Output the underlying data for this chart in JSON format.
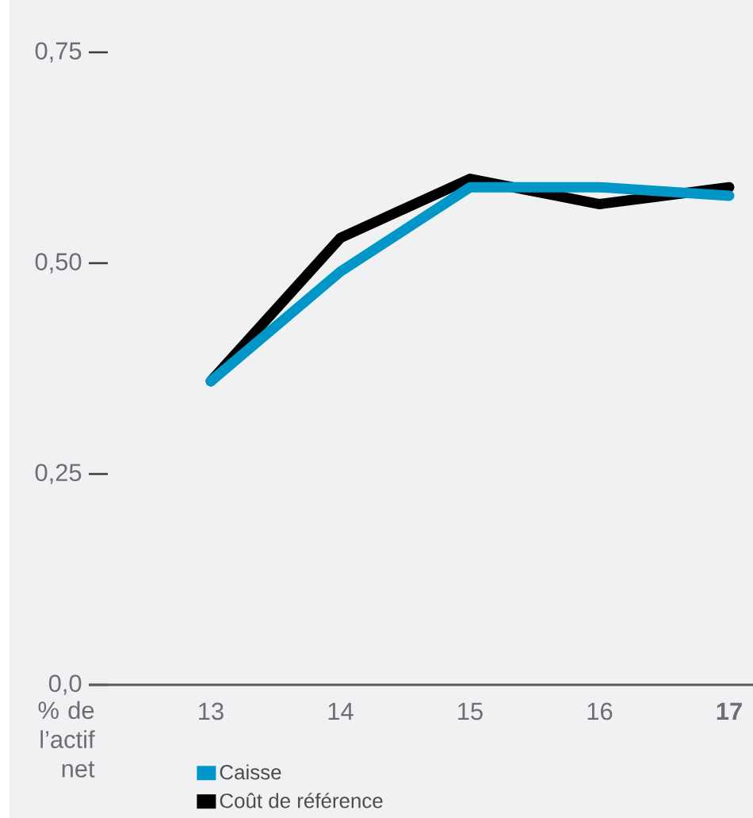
{
  "chart_data": {
    "type": "line",
    "ylabel": "% de l’actif net",
    "categories": [
      "13",
      "14",
      "15",
      "16",
      "17"
    ],
    "series": [
      {
        "name": "Caisse",
        "color": "#0096c8",
        "values": [
          0.36,
          0.49,
          0.59,
          0.59,
          0.58
        ]
      },
      {
        "name": "Coût de référence",
        "color": "#000000",
        "values": [
          0.36,
          0.53,
          0.6,
          0.57,
          0.59
        ]
      }
    ],
    "ylim": [
      0,
      0.75
    ],
    "yticks": [
      {
        "value": 0,
        "label": "0,0"
      },
      {
        "value": 0.25,
        "label": "0,25"
      },
      {
        "value": 0.5,
        "label": "0,50"
      },
      {
        "value": 0.75,
        "label": "0,75"
      }
    ],
    "legend": "bottom",
    "grid": false
  }
}
